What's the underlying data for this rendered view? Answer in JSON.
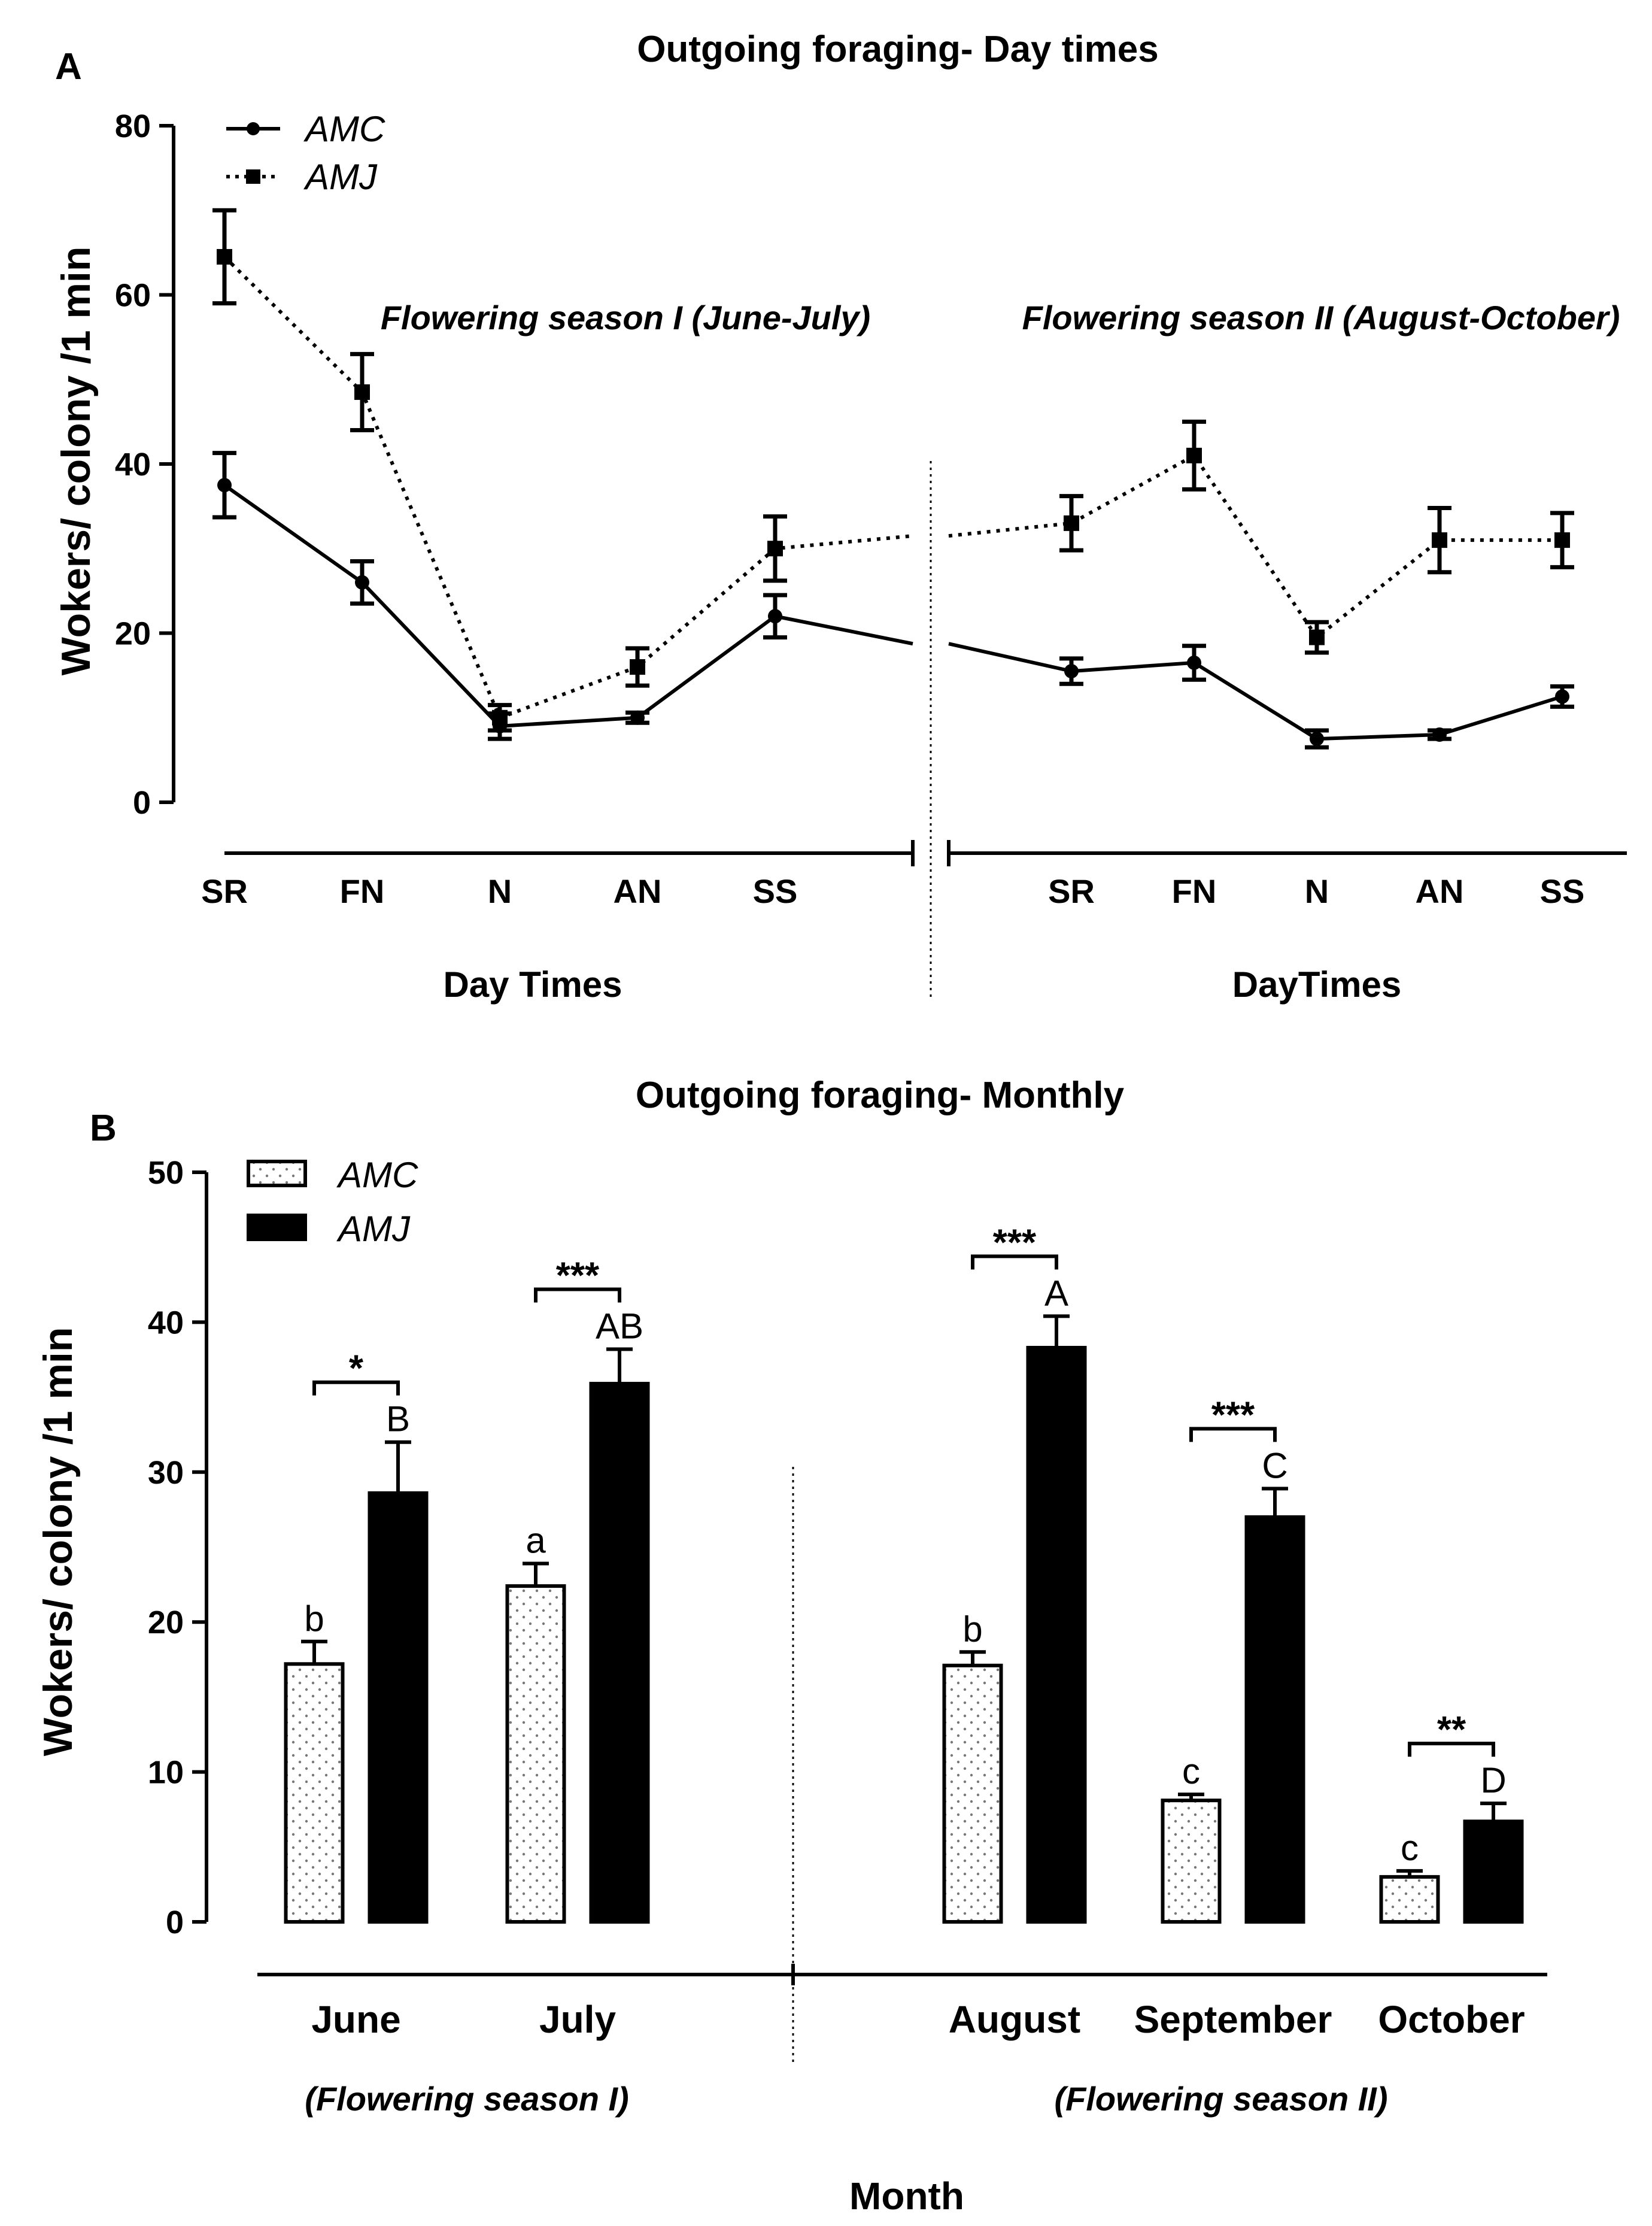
{
  "chart_data": [
    {
      "type": "line",
      "panel": "A",
      "title": "Outgoing foraging- Day times",
      "ylabel": "Wokers/ colony /1 min",
      "ylim": [
        0,
        80
      ],
      "yticks": [
        0,
        20,
        40,
        60,
        80
      ],
      "legend": {
        "placement": "top-left",
        "entries": [
          "AMC",
          "AMJ"
        ]
      },
      "groups": [
        {
          "label": "Flowering season I (June-July)",
          "xlabel": "Day Times",
          "categories": [
            "SR",
            "FN",
            "N",
            "AN",
            "SS"
          ],
          "series": [
            {
              "name": "AMC",
              "values": [
                37.5,
                26,
                9,
                10,
                22
              ],
              "errors": [
                3.8,
                2.5,
                1.5,
                0.6,
                2.5
              ]
            },
            {
              "name": "AMJ",
              "values": [
                64.5,
                48.5,
                10,
                16,
                30
              ],
              "errors": [
                5.5,
                4.5,
                1.5,
                2.2,
                3.8
              ]
            }
          ]
        },
        {
          "label": "Flowering season II (August-October)",
          "xlabel": "DayTimes",
          "categories": [
            "SR",
            "FN",
            "N",
            "AN",
            "SS"
          ],
          "series": [
            {
              "name": "AMC",
              "values": [
                15.5,
                16.5,
                7.5,
                8,
                12.5
              ],
              "errors": [
                1.5,
                2,
                1,
                0.5,
                1.2
              ]
            },
            {
              "name": "AMJ",
              "values": [
                33,
                41,
                19.5,
                31,
                31
              ],
              "errors": [
                3.2,
                4,
                1.8,
                3.8,
                3.2
              ]
            }
          ]
        }
      ]
    },
    {
      "type": "bar",
      "panel": "B",
      "title": "Outgoing foraging- Monthly",
      "ylabel": "Wokers/ colony /1 min",
      "xlabel": "Month",
      "ylim": [
        0,
        50
      ],
      "yticks": [
        0,
        10,
        20,
        30,
        40,
        50
      ],
      "legend": {
        "placement": "top-left",
        "entries": [
          "AMC",
          "AMJ"
        ]
      },
      "categories": [
        "June",
        "July",
        "August",
        "September",
        "October"
      ],
      "seasons": [
        {
          "label": "(Flowering season I)",
          "months": [
            "June",
            "July"
          ]
        },
        {
          "label": "(Flowering season II)",
          "months": [
            "August",
            "September",
            "October"
          ]
        }
      ],
      "series": [
        {
          "name": "AMC",
          "values": [
            17.2,
            22.4,
            17.1,
            8.1,
            3.0
          ],
          "errors": [
            1.5,
            1.5,
            0.9,
            0.4,
            0.4
          ],
          "letters": [
            "b",
            "a",
            "b",
            "c",
            "c"
          ]
        },
        {
          "name": "AMJ",
          "values": [
            28.6,
            35.9,
            38.3,
            27.0,
            6.7
          ],
          "errors": [
            3.4,
            2.3,
            2.1,
            1.9,
            1.2
          ],
          "letters": [
            "B",
            "AB",
            "A",
            "C",
            "D"
          ]
        }
      ],
      "significance": [
        "*",
        "***",
        "***",
        "***",
        "**"
      ]
    }
  ]
}
